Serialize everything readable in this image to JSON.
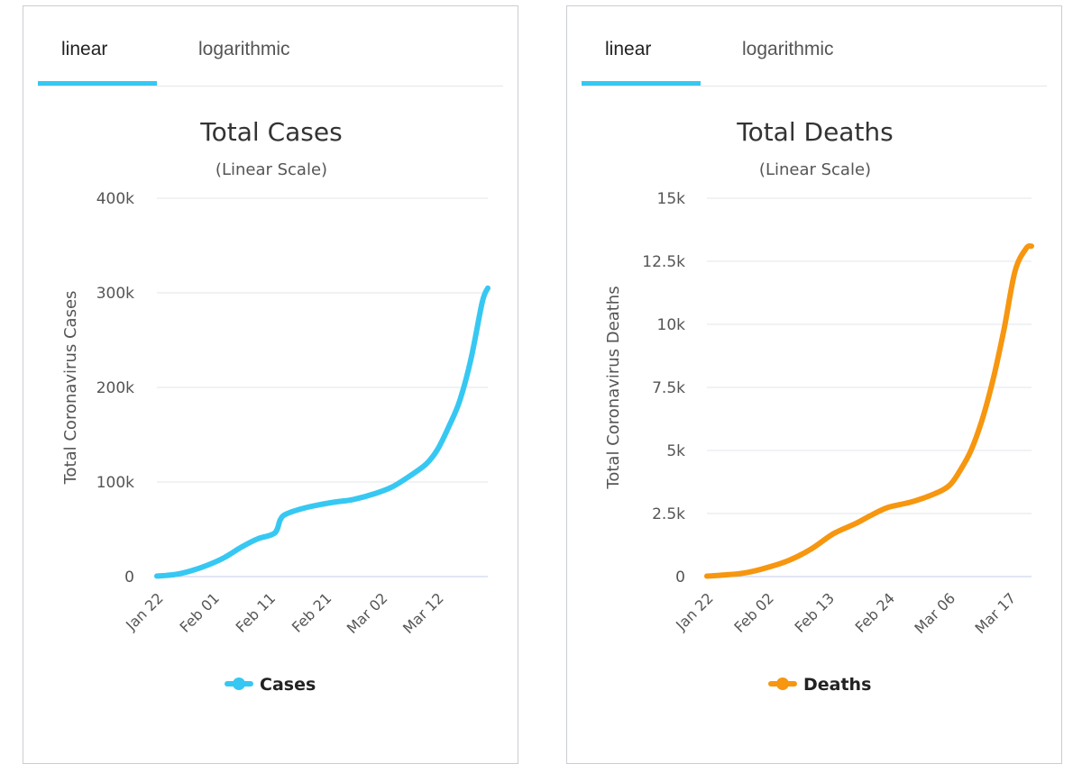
{
  "colors": {
    "tab_active": "#36c8f2",
    "cases_line": "#36c8f2",
    "deaths_line": "#f7960f",
    "grid": "#e3e6ea",
    "axis": "#c3cde8"
  },
  "panels": [
    {
      "tabs": [
        {
          "label": "linear",
          "active": true
        },
        {
          "label": "logarithmic",
          "active": false
        }
      ]
    },
    {
      "tabs": [
        {
          "label": "linear",
          "active": true
        },
        {
          "label": "logarithmic",
          "active": false
        }
      ]
    }
  ],
  "chart_data": [
    {
      "type": "line",
      "title": "Total Cases",
      "subtitle": "(Linear Scale)",
      "ylabel": "Total Coronavirus Cases",
      "xlabel": "",
      "ylim": [
        0,
        400000
      ],
      "yticks": [
        0,
        100000,
        200000,
        300000,
        400000
      ],
      "ytick_labels": [
        "0",
        "100k",
        "200k",
        "300k",
        "400k"
      ],
      "x_range": [
        "Jan 22",
        "Mar 21"
      ],
      "xtick_labels": [
        "Jan 22",
        "Feb 01",
        "Feb 11",
        "Feb 21",
        "Mar 02",
        "Mar 12"
      ],
      "grid": true,
      "legend_position": "bottom",
      "series": [
        {
          "name": "Cases",
          "color": "#36c8f2",
          "x": [
            "Jan 22",
            "Jan 25",
            "Jan 28",
            "Jan 31",
            "Feb 03",
            "Feb 06",
            "Feb 09",
            "Feb 12",
            "Feb 13",
            "Feb 14",
            "Feb 17",
            "Feb 20",
            "Feb 23",
            "Feb 26",
            "Mar 01",
            "Mar 04",
            "Mar 07",
            "Mar 10",
            "Mar 12",
            "Mar 14",
            "Mar 16",
            "Mar 18",
            "Mar 20",
            "Mar 21"
          ],
          "values": [
            580,
            2000,
            6000,
            12000,
            20000,
            31000,
            40000,
            46000,
            60000,
            66000,
            72000,
            76000,
            79000,
            81500,
            88000,
            95000,
            106000,
            119000,
            134000,
            158000,
            186000,
            230000,
            290000,
            305000
          ]
        }
      ]
    },
    {
      "type": "line",
      "title": "Total Deaths",
      "subtitle": "(Linear Scale)",
      "ylabel": "Total Coronavirus Deaths",
      "xlabel": "",
      "ylim": [
        0,
        15000
      ],
      "yticks": [
        0,
        2500,
        5000,
        7500,
        10000,
        12500,
        15000
      ],
      "ytick_labels": [
        "0",
        "2.5k",
        "5k",
        "7.5k",
        "10k",
        "12.5k",
        "15k"
      ],
      "x_range": [
        "Jan 22",
        "Mar 21"
      ],
      "xtick_labels": [
        "Jan 22",
        "Feb 02",
        "Feb 13",
        "Feb 24",
        "Mar 06",
        "Mar 17"
      ],
      "grid": true,
      "legend_position": "bottom",
      "series": [
        {
          "name": "Deaths",
          "color": "#f7960f",
          "x": [
            "Jan 22",
            "Jan 25",
            "Jan 29",
            "Feb 02",
            "Feb 06",
            "Feb 10",
            "Feb 14",
            "Feb 18",
            "Feb 21",
            "Feb 24",
            "Feb 28",
            "Mar 03",
            "Mar 06",
            "Mar 08",
            "Mar 10",
            "Mar 12",
            "Mar 14",
            "Mar 16",
            "Mar 18",
            "Mar 20",
            "Mar 21"
          ],
          "values": [
            17,
            60,
            150,
            360,
            650,
            1100,
            1700,
            2100,
            2450,
            2750,
            2950,
            3250,
            3600,
            4200,
            5000,
            6200,
            7800,
            9800,
            12100,
            13000,
            13100
          ]
        }
      ]
    }
  ]
}
